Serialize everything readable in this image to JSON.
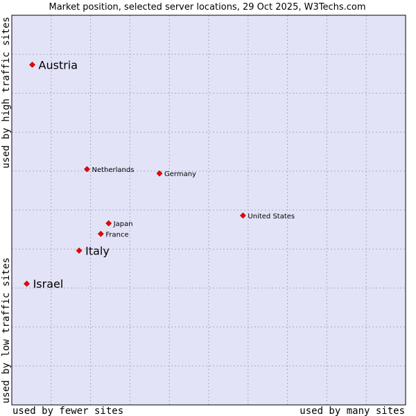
{
  "chart_data": {
    "type": "scatter",
    "title": "Market position, selected server locations, 29 Oct 2025, W3Techs.com",
    "xlabel_left": "used by fewer sites",
    "xlabel_right": "used by many sites",
    "ylabel_bottom": "used by low traffic sites",
    "ylabel_top": "used by high traffic sites",
    "xlim": [
      0,
      100
    ],
    "ylim": [
      0,
      100
    ],
    "grid": true,
    "point_color": "#ee0000",
    "plot_bg": "#e3e3f8",
    "grid_color": "#a6a6c8",
    "points": [
      {
        "label": "Austria",
        "x": 5.2,
        "y": 87.3,
        "emphasis": true
      },
      {
        "label": "Netherlands",
        "x": 19.1,
        "y": 60.5,
        "emphasis": false
      },
      {
        "label": "Germany",
        "x": 37.5,
        "y": 59.4,
        "emphasis": false
      },
      {
        "label": "United States",
        "x": 58.7,
        "y": 48.6,
        "emphasis": false
      },
      {
        "label": "Japan",
        "x": 24.6,
        "y": 46.6,
        "emphasis": false
      },
      {
        "label": "France",
        "x": 22.6,
        "y": 43.9,
        "emphasis": false
      },
      {
        "label": "Italy",
        "x": 17.1,
        "y": 39.6,
        "emphasis": true
      },
      {
        "label": "Israel",
        "x": 3.8,
        "y": 31.1,
        "emphasis": true
      }
    ]
  }
}
